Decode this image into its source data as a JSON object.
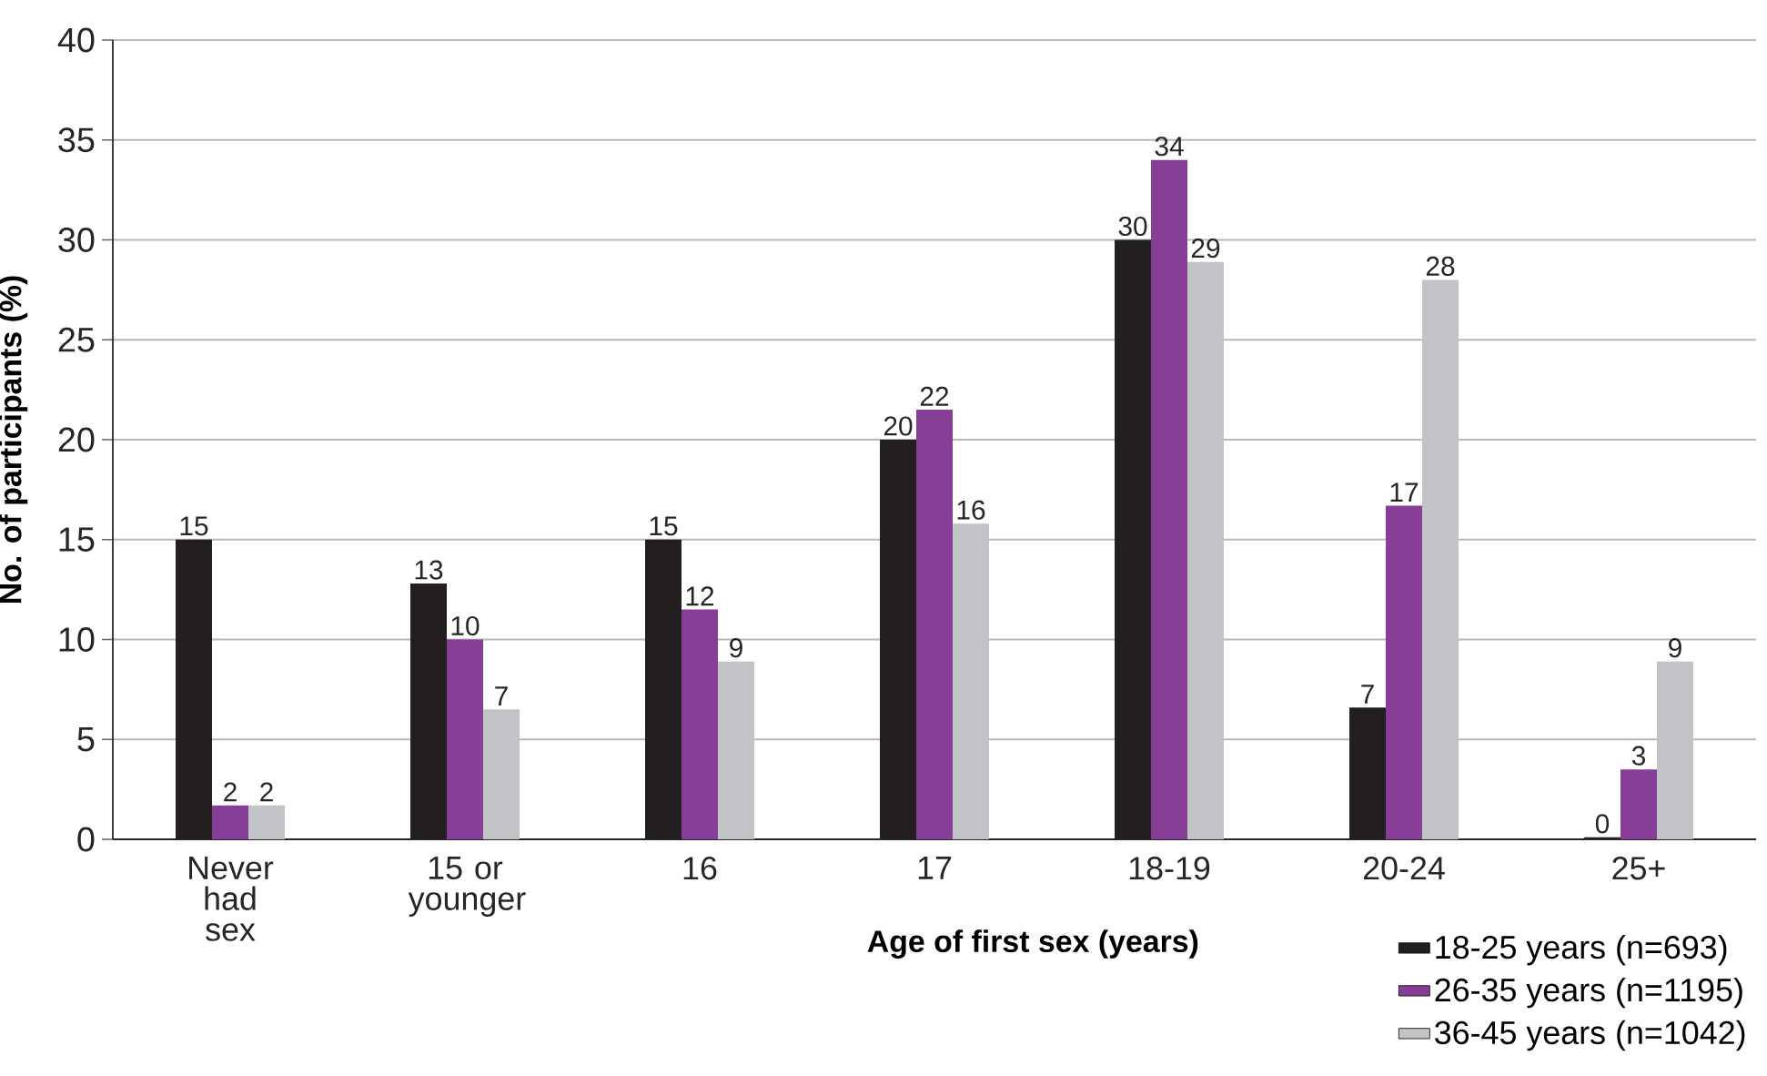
{
  "chart_data": {
    "type": "bar",
    "xlabel": "Age of first sex (years)",
    "ylabel": "No. of participants (%)",
    "categories": [
      "Never had sex",
      "15 or younger",
      "16",
      "17",
      "18-19",
      "20-24",
      "25+"
    ],
    "series": [
      {
        "name": "18-25 years (n=693)",
        "color": "#231f20",
        "values": [
          15.0,
          12.8,
          15.0,
          20.0,
          30.0,
          6.6,
          0.1
        ],
        "value_labels": [
          "15",
          "13",
          "15",
          "20",
          "30",
          "7",
          "0"
        ]
      },
      {
        "name": "26-35 years (n=1195)",
        "color": "#873e96",
        "values": [
          1.7,
          10.0,
          11.5,
          21.5,
          34.0,
          16.7,
          3.5
        ],
        "value_labels": [
          "2",
          "10",
          "12",
          "22",
          "34",
          "17",
          "3"
        ]
      },
      {
        "name": "36-45 years (n=1042)",
        "color": "#c2c3c7",
        "values": [
          1.7,
          6.5,
          8.9,
          15.8,
          28.9,
          28.0,
          8.9
        ],
        "value_labels": [
          "2",
          "7",
          "9",
          "16",
          "29",
          "28",
          "9"
        ]
      }
    ],
    "ylim": [
      0,
      40
    ],
    "yticks": [
      0,
      5,
      10,
      15,
      20,
      25,
      30,
      35,
      40
    ],
    "grid": "y",
    "legend": "bottom right"
  }
}
